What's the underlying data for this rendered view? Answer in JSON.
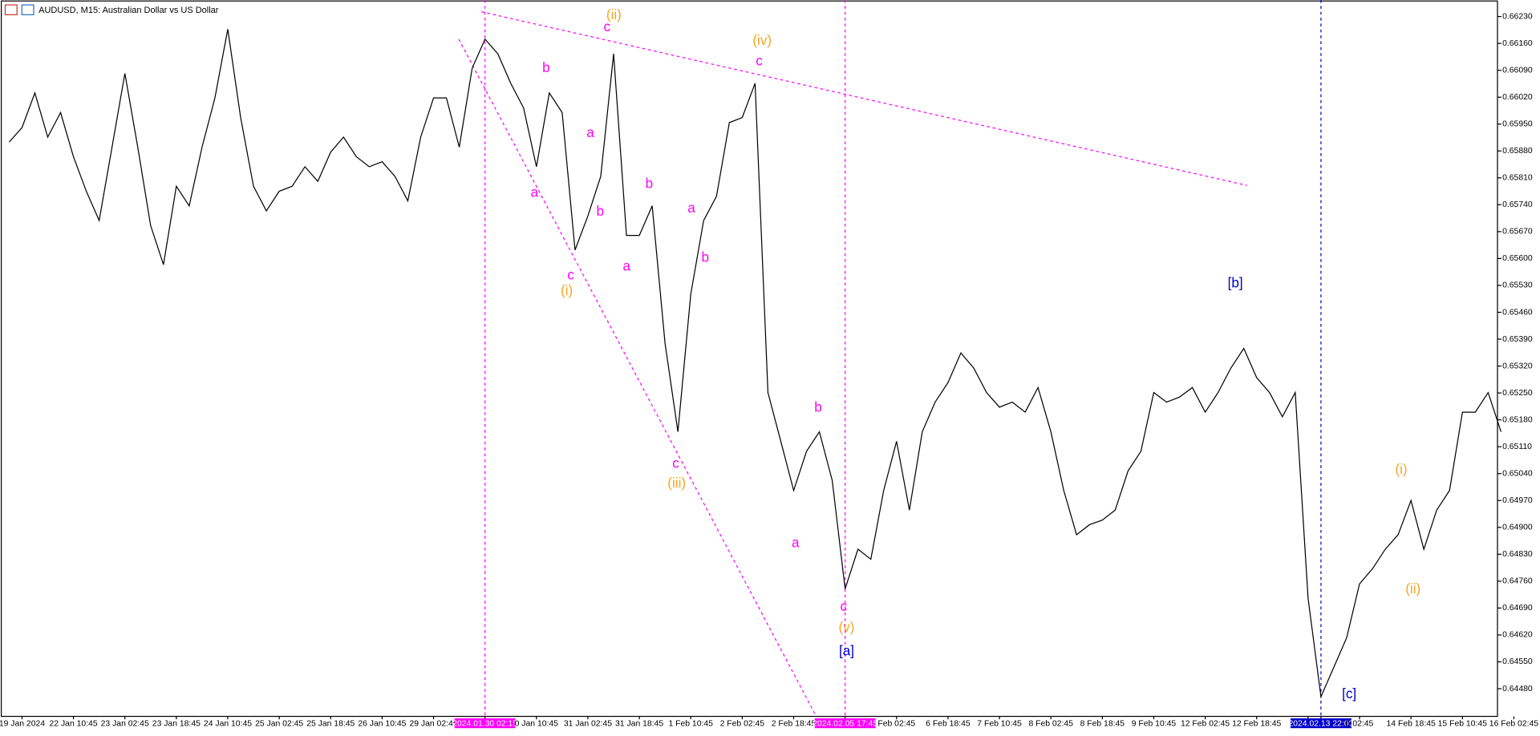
{
  "chart_data": {
    "type": "line",
    "title": "AUDUSD, M15:  Australian Dollar vs US Dollar",
    "categories": [
      null,
      "19 Jan 2024",
      null,
      null,
      null,
      "22 Jan 10:45",
      null,
      null,
      null,
      "23 Jan 02:45",
      null,
      null,
      null,
      "23 Jan 18:45",
      null,
      null,
      null,
      "24 Jan 10:45",
      null,
      null,
      null,
      "25 Jan 02:45",
      null,
      null,
      null,
      "25 Jan 18:45",
      null,
      null,
      null,
      "26 Jan 10:45",
      null,
      null,
      null,
      "29 Jan 02:45",
      null,
      null,
      null,
      "2024.01.30 02:15",
      null,
      null,
      null,
      "0 Jan 10:45",
      null,
      null,
      null,
      "31 Jan 02:45",
      null,
      null,
      null,
      "31 Jan 18:45",
      null,
      null,
      null,
      "1 Feb 10:45",
      null,
      null,
      null,
      "2 Feb 02:45",
      null,
      null,
      null,
      "2 Feb 18:45",
      null,
      null,
      null,
      "2024.02.05 17:45",
      null,
      null,
      null,
      "Feb 02:45",
      null,
      null,
      null,
      "6 Feb 18:45",
      null,
      null,
      null,
      "7 Feb 10:45",
      null,
      null,
      null,
      "8 Feb 02:45",
      null,
      null,
      null,
      "8 Feb 18:45",
      null,
      null,
      null,
      "9 Feb 10:45",
      null,
      null,
      null,
      "12 Feb 02:45",
      null,
      null,
      null,
      "12 Feb 18:45",
      null,
      null,
      null,
      "1",
      "2024.02.13 22:00",
      null,
      null,
      "b 02:45",
      null,
      null,
      null,
      "14 Feb 18:45",
      null,
      null,
      null,
      "15 Feb 10:45",
      null,
      null,
      null,
      "16 Feb 02:45"
    ],
    "series": [
      {
        "name": "AUDUSD",
        "color": "#000000",
        "values": [
          0.65903,
          0.65941,
          0.66031,
          0.65916,
          0.6598,
          0.65865,
          0.65775,
          0.65699,
          0.6589,
          0.66082,
          0.6589,
          0.65686,
          0.65584,
          0.65788,
          0.65737,
          0.6589,
          0.66018,
          0.66197,
          0.65967,
          0.65788,
          0.65724,
          0.65775,
          0.65788,
          0.65839,
          0.65801,
          0.65877,
          0.65916,
          0.65865,
          0.65839,
          0.65852,
          0.65814,
          0.6575,
          0.65916,
          0.66018,
          0.66018,
          0.6589,
          0.66095,
          0.66171,
          0.66133,
          0.66056,
          0.65992,
          0.65839,
          0.66031,
          0.6598,
          0.65622,
          0.65711,
          0.65814,
          0.66133,
          0.6566,
          0.6566,
          0.65737,
          0.65379,
          0.65149,
          0.65507,
          0.65699,
          0.65762,
          0.65954,
          0.65967,
          0.66056,
          0.65251,
          0.65124,
          0.64996,
          0.65098,
          0.65149,
          0.65022,
          0.6474,
          0.64843,
          0.64817,
          0.64996,
          0.65124,
          0.64945,
          0.65149,
          0.65226,
          0.65277,
          0.65354,
          0.65315,
          0.65251,
          0.65213,
          0.65226,
          0.652,
          0.65264,
          0.65149,
          0.64996,
          0.64881,
          0.64907,
          0.64919,
          0.64945,
          0.65047,
          0.65098,
          0.65251,
          0.65226,
          0.65239,
          0.65264,
          0.652,
          0.65251,
          0.65315,
          0.65366,
          0.6529,
          0.65251,
          0.65188,
          0.65251,
          0.64715,
          0.64459,
          0.64536,
          0.64613,
          0.64753,
          0.64792,
          0.64843,
          0.64881,
          0.6497,
          0.64843,
          0.64945,
          0.64996,
          0.652,
          0.652,
          0.65251,
          0.65149,
          null
        ]
      }
    ],
    "ylim": [
      0.64408,
      0.66273
    ],
    "yticks": [
      {
        "value": 0.6623,
        "label": "0.66230"
      },
      {
        "value": 0.6616,
        "label": "0.66160"
      },
      {
        "value": 0.6609,
        "label": "0.66090"
      },
      {
        "value": 0.6602,
        "label": "0.66020"
      },
      {
        "value": 0.6595,
        "label": "0.65950"
      },
      {
        "value": 0.6588,
        "label": "0.65880"
      },
      {
        "value": 0.6581,
        "label": "0.65810"
      },
      {
        "value": 0.6574,
        "label": "0.65740"
      },
      {
        "value": 0.6567,
        "label": "0.65670"
      },
      {
        "value": 0.656,
        "label": "0.65600"
      },
      {
        "value": 0.6553,
        "label": "0.65530"
      },
      {
        "value": 0.6546,
        "label": "0.65460"
      },
      {
        "value": 0.6539,
        "label": "0.65390"
      },
      {
        "value": 0.6532,
        "label": "0.65320"
      },
      {
        "value": 0.6525,
        "label": "0.65250"
      },
      {
        "value": 0.6518,
        "label": "0.65180"
      },
      {
        "value": 0.6511,
        "label": "0.65110"
      },
      {
        "value": 0.6504,
        "label": "0.65040"
      },
      {
        "value": 0.6497,
        "label": "0.64970"
      },
      {
        "value": 0.649,
        "label": "0.64900"
      },
      {
        "value": 0.6483,
        "label": "0.64830"
      },
      {
        "value": 0.6476,
        "label": "0.64760"
      },
      {
        "value": 0.6469,
        "label": "0.64690"
      },
      {
        "value": 0.6462,
        "label": "0.64620"
      },
      {
        "value": 0.6455,
        "label": "0.64550"
      },
      {
        "value": 0.6448,
        "label": "0.64480"
      }
    ],
    "grid": false,
    "vertical_lines": [
      {
        "at": "2024.01.30 02:15",
        "color": "#ff00ff"
      },
      {
        "at": "2024.02.05 17:45",
        "color": "#ff00ff"
      },
      {
        "at": "2024.02.13 22:00",
        "color": "#0000cc"
      }
    ],
    "annotations": [
      {
        "text": "(ii)",
        "color": "#f5a623"
      },
      {
        "text": "c",
        "color": "#ff00ff"
      },
      {
        "text": "(iv)",
        "color": "#f5a623"
      },
      {
        "text": "c",
        "color": "#ff00ff"
      },
      {
        "text": "b",
        "color": "#ff00ff"
      },
      {
        "text": "a",
        "color": "#ff00ff"
      },
      {
        "text": "a",
        "color": "#ff00ff"
      },
      {
        "text": "b",
        "color": "#ff00ff"
      },
      {
        "text": "b",
        "color": "#ff00ff"
      },
      {
        "text": "a",
        "color": "#ff00ff"
      },
      {
        "text": "b",
        "color": "#ff00ff"
      },
      {
        "text": "a",
        "color": "#ff00ff"
      },
      {
        "text": "c",
        "color": "#ff00ff"
      },
      {
        "text": "(i)",
        "color": "#f5a623"
      },
      {
        "text": "c",
        "color": "#ff00ff"
      },
      {
        "text": "(iii)",
        "color": "#f5a623"
      },
      {
        "text": "b",
        "color": "#ff00ff"
      },
      {
        "text": "a",
        "color": "#ff00ff"
      },
      {
        "text": "c",
        "color": "#ff00ff"
      },
      {
        "text": "(v)",
        "color": "#f5a623"
      },
      {
        "text": "[a]",
        "color": "#0000cc"
      },
      {
        "text": "[b]",
        "color": "#0000cc"
      },
      {
        "text": "[c]",
        "color": "#0000cc"
      },
      {
        "text": "(i)",
        "color": "#f5a623"
      },
      {
        "text": "(ii)",
        "color": "#f5a623"
      }
    ]
  }
}
